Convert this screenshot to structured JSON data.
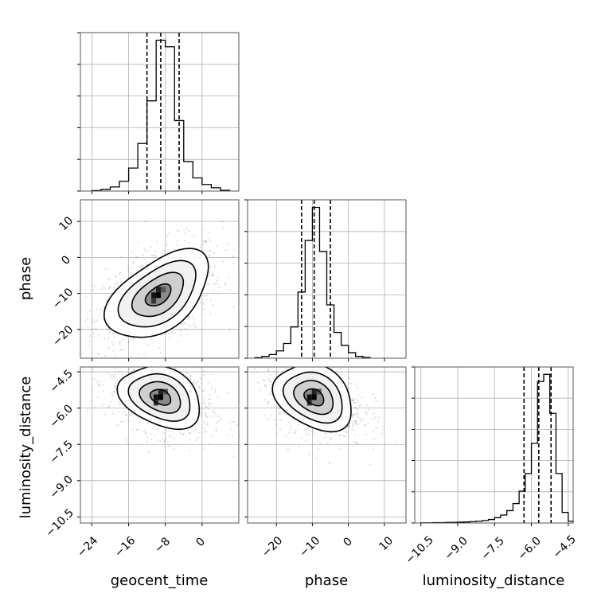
{
  "chart_data": {
    "type": "scatter",
    "figure_type": "corner",
    "parameters": [
      "geocent_time",
      "phase",
      "luminosity_distance"
    ],
    "axis_labels": {
      "x": [
        "geocent_time",
        "phase",
        "luminosity_distance"
      ],
      "y": [
        "",
        "phase",
        "luminosity_distance"
      ]
    },
    "ranges": {
      "geocent_time": [
        -26.5,
        8
      ],
      "phase": [
        -28,
        16
      ],
      "luminosity_distance": [
        -10.75,
        -4.3
      ]
    },
    "ticks": {
      "geocent_time": [
        -24,
        -16,
        -8,
        0
      ],
      "phase_x": [
        -20,
        -10,
        0,
        10
      ],
      "phase_y": [
        10,
        0,
        -10,
        -20
      ],
      "luminosity_distance": [
        -10.5,
        -9.0,
        -7.5,
        -6.0,
        -4.5
      ]
    },
    "tick_labels": {
      "geocent_time": [
        "−24",
        "−16",
        "−8",
        "0"
      ],
      "phase_x": [
        "−20",
        "−10",
        "0",
        "10"
      ],
      "phase_y": [
        "10",
        "0",
        "−10",
        "−20"
      ],
      "luminosity_distance_x": [
        "−10.5",
        "−9.0",
        "−7.5",
        "−6.0",
        "−4.5"
      ],
      "luminosity_distance_y": [
        "−4.5",
        "−6.0",
        "−7.5",
        "−9.0",
        "−10.5"
      ]
    },
    "quantiles": {
      "geocent_time": [
        -12,
        -9,
        -5
      ],
      "phase": [
        -13,
        -9.5,
        -5
      ],
      "luminosity_distance": [
        -6.3,
        -5.7,
        -5.2
      ]
    },
    "histograms": {
      "geocent_time": {
        "edges": [
          -24,
          -22,
          -20,
          -18,
          -16,
          -14,
          -12,
          -10,
          -8,
          -6,
          -4,
          -2,
          0,
          2,
          4,
          6
        ],
        "counts": [
          0.3,
          1,
          2.5,
          6,
          14,
          29,
          55,
          92,
          88,
          43,
          18,
          8,
          4,
          2,
          0.5
        ]
      },
      "phase": {
        "edges": [
          -26,
          -24,
          -22,
          -20,
          -18,
          -16,
          -14,
          -12,
          -10,
          -8,
          -6,
          -4,
          -2,
          0,
          2,
          4,
          6
        ],
        "counts": [
          0.3,
          1,
          2,
          4,
          8,
          17,
          36,
          64,
          82,
          58,
          29,
          14,
          7,
          3,
          1,
          0.4
        ]
      },
      "luminosity_distance": {
        "edges": [
          -10.5,
          -10.25,
          -10.0,
          -9.75,
          -9.5,
          -9.25,
          -9.0,
          -8.75,
          -8.5,
          -8.25,
          -8.0,
          -7.75,
          -7.5,
          -7.25,
          -7.0,
          -6.75,
          -6.5,
          -6.25,
          -6.0,
          -5.75,
          -5.5,
          -5.25,
          -5.0,
          -4.75,
          -4.5,
          -4.25
        ],
        "counts": [
          0.1,
          0.1,
          0.2,
          0.2,
          0.3,
          0.4,
          0.5,
          0.6,
          0.8,
          1.0,
          1.4,
          2.0,
          3.0,
          4.5,
          7,
          11,
          18,
          28,
          45,
          80,
          84,
          62,
          28,
          6,
          1
        ]
      }
    },
    "joint_2d": [
      {
        "x": "geocent_time",
        "y": "phase",
        "center": [
          -9.5,
          -10.5
        ],
        "sigma": [
          5.5,
          6.0
        ],
        "correlation": 0.45,
        "contour_levels_sigma": [
          0.5,
          1.0,
          1.5,
          2.0
        ]
      },
      {
        "x": "geocent_time",
        "y": "luminosity_distance",
        "center": [
          -9,
          -5.55
        ],
        "sigma": [
          4.5,
          0.65
        ],
        "correlation": -0.35,
        "contour_levels_sigma": [
          0.5,
          1.0,
          1.5,
          2.0
        ]
      },
      {
        "x": "phase",
        "y": "luminosity_distance",
        "center": [
          -9.5,
          -5.55
        ],
        "sigma": [
          5.5,
          0.7
        ],
        "correlation": -0.35,
        "contour_levels_sigma": [
          0.5,
          1.0,
          1.5,
          2.0
        ]
      }
    ],
    "grid": true,
    "legend": "none"
  }
}
